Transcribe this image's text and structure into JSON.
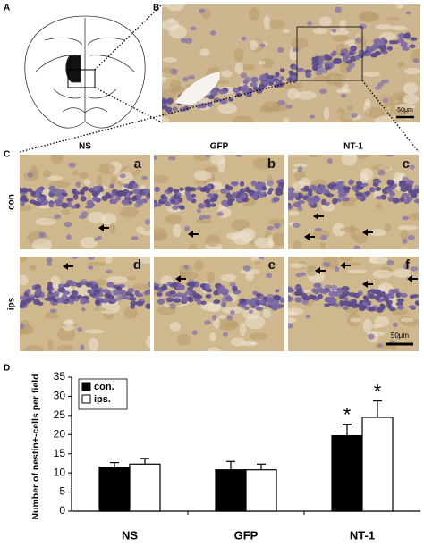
{
  "figure": {
    "panel_labels": [
      "A",
      "B",
      "C",
      "D"
    ],
    "panel_b_scale": "50μm",
    "panel_c": {
      "columns": [
        "NS",
        "GFP",
        "NT-1"
      ],
      "rows": [
        "con",
        "ips"
      ],
      "subpanels": [
        "a",
        "b",
        "c",
        "d",
        "e",
        "f"
      ],
      "scale": "50μm"
    }
  },
  "chart_data": {
    "type": "bar",
    "ylabel": "Number of nestin+-cells per field",
    "categories": [
      "NS",
      "GFP",
      "NT-1"
    ],
    "series": [
      {
        "name": "con.",
        "color": "#000000",
        "values": [
          11.5,
          10.8,
          19.7
        ],
        "errors": [
          1.2,
          2.2,
          3.0
        ]
      },
      {
        "name": "ips.",
        "color": "#ffffff",
        "values": [
          12.3,
          10.8,
          24.5
        ],
        "errors": [
          1.5,
          1.5,
          4.3
        ]
      }
    ],
    "ylim": [
      0,
      35
    ],
    "yticks": [
      0,
      5,
      10,
      15,
      20,
      25,
      30,
      35
    ],
    "annotations": [
      {
        "text": "*",
        "series": 0,
        "category": 2
      },
      {
        "text": "*",
        "series": 1,
        "category": 2
      }
    ],
    "legend": "upper left"
  }
}
